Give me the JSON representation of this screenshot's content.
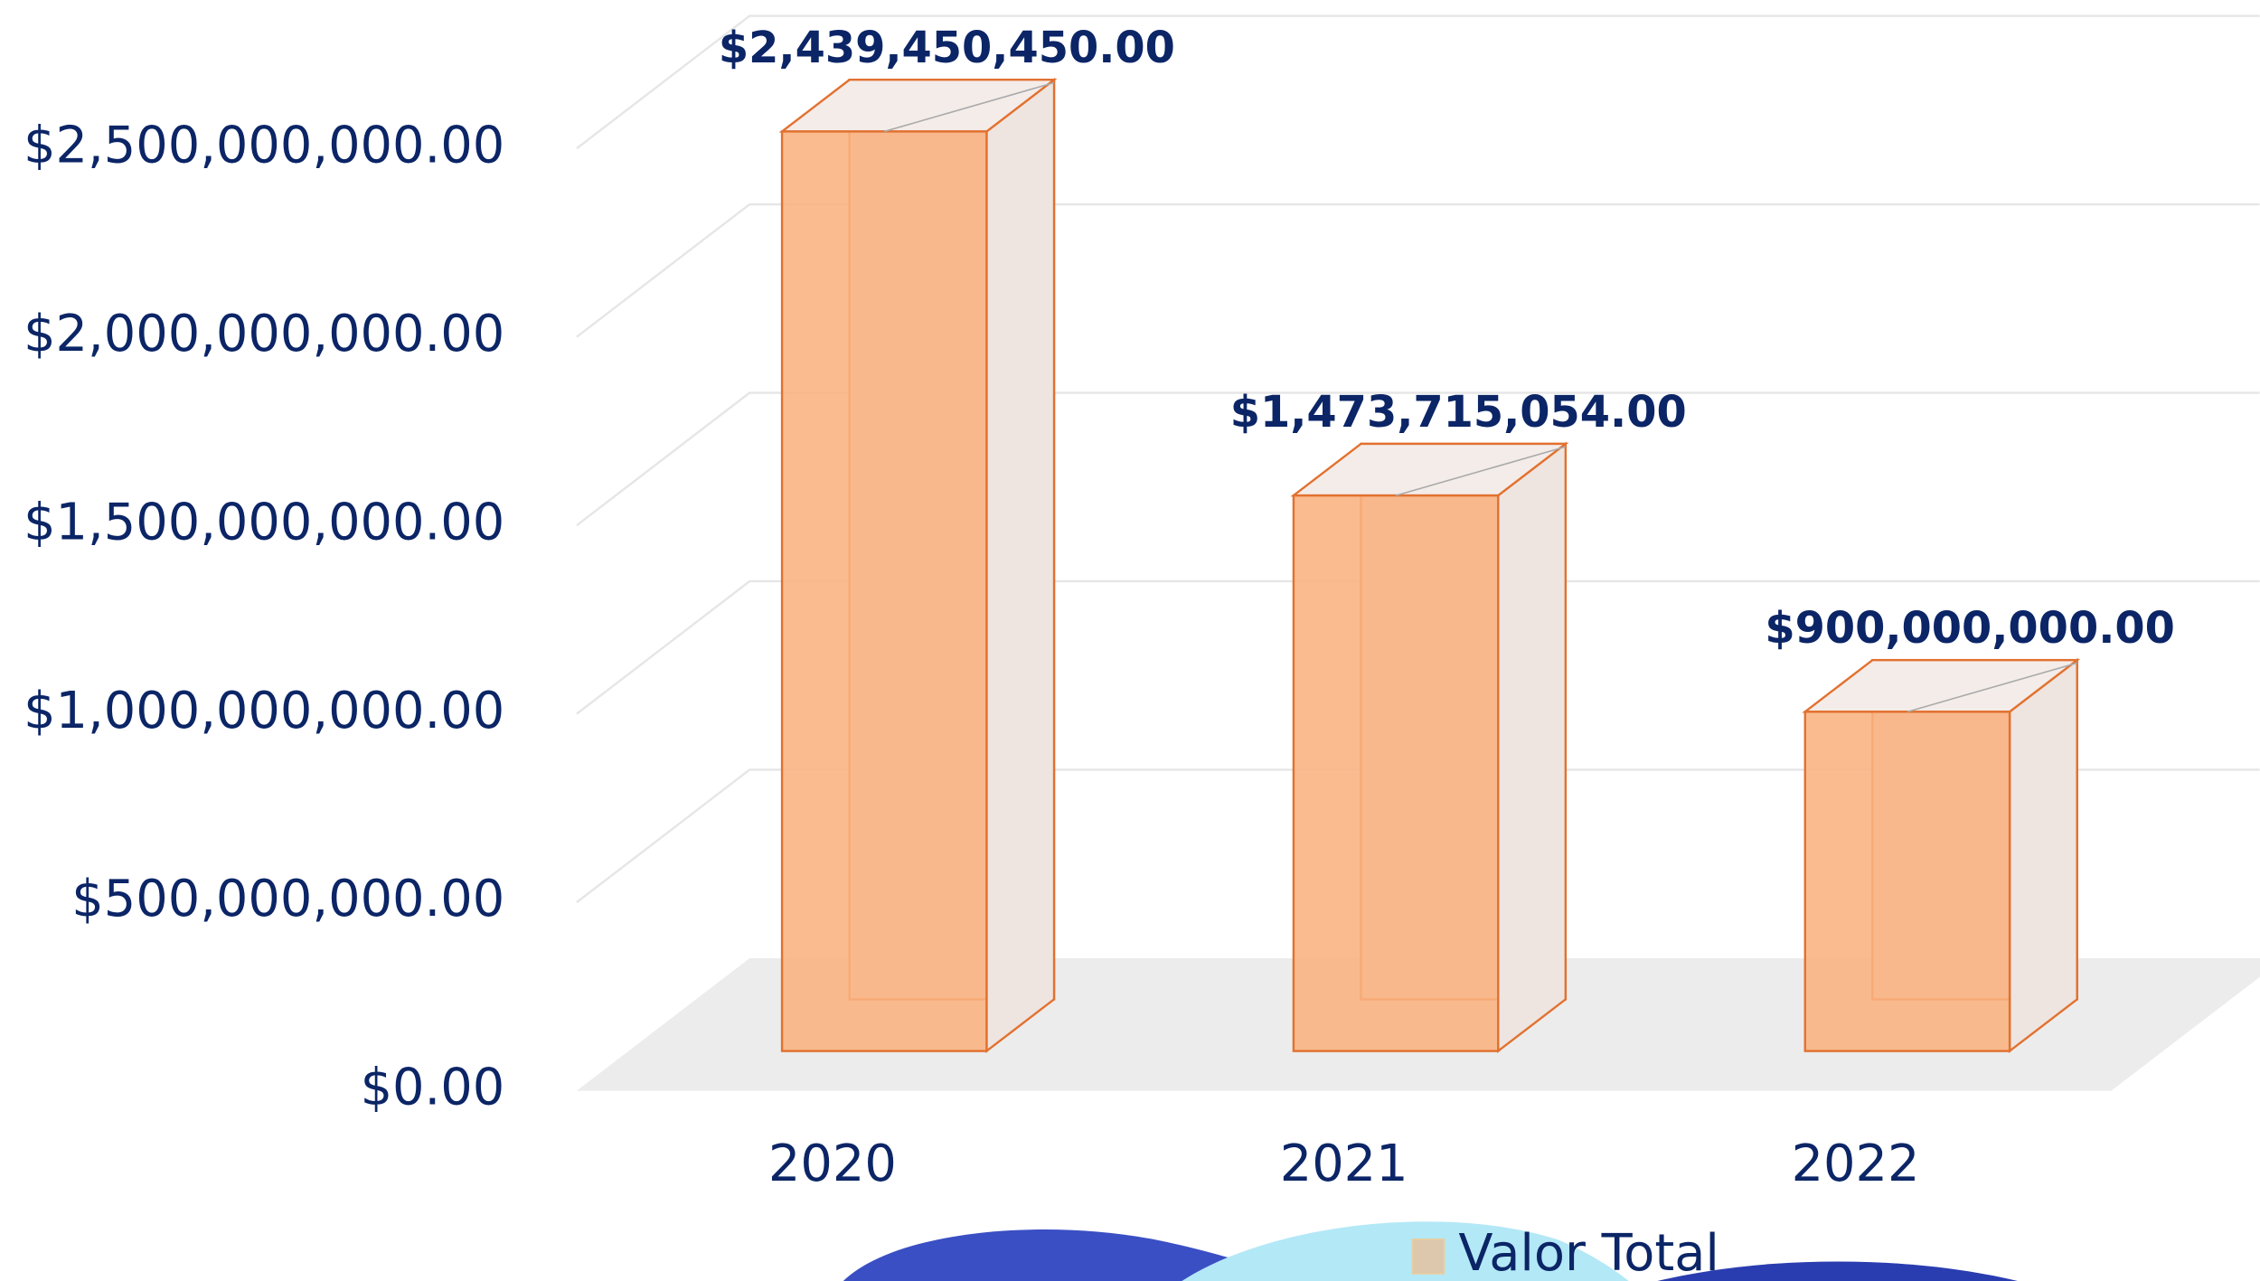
{
  "chart_data": {
    "type": "bar",
    "categories": [
      "2020",
      "2021",
      "2022"
    ],
    "series": [
      {
        "name": "Valor Total",
        "color": "#f9b27f",
        "values": [
          2439450450,
          1473715054,
          900000000
        ],
        "value_labels": [
          "$2,439,450,450.00",
          "$1,473,715,054.00",
          "$900,000,000.00"
        ]
      }
    ],
    "ylim": [
      0,
      2500000000
    ],
    "yticks": [
      {
        "value": 0,
        "label": "$0.00"
      },
      {
        "value": 500000000,
        "label": "$500,000,000.00"
      },
      {
        "value": 1000000000,
        "label": "$1,000,000,000.00"
      },
      {
        "value": 1500000000,
        "label": "$1,500,000,000.00"
      },
      {
        "value": 2000000000,
        "label": "$2,000,000,000.00"
      },
      {
        "value": 2500000000,
        "label": "$2,500,000,000.00"
      }
    ],
    "grid": true,
    "legend": "bottom"
  }
}
